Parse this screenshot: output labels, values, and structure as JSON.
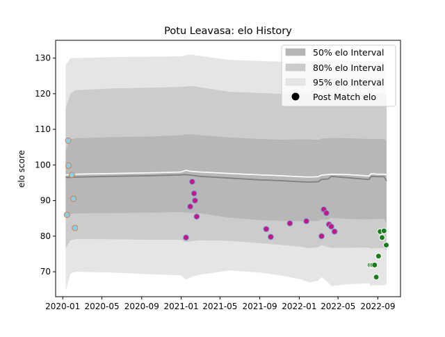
{
  "chart_data": {
    "type": "scatter",
    "title": "Potu Leavasa: elo History",
    "xlabel": "",
    "ylabel": "elo score",
    "xlim": [
      "2019-12-10",
      "2022-11-10"
    ],
    "ylim": [
      63,
      135
    ],
    "x_ticks": [
      "2020-01",
      "2020-05",
      "2020-09",
      "2021-01",
      "2021-05",
      "2021-09",
      "2022-01",
      "2022-05",
      "2022-09"
    ],
    "y_ticks": [
      70,
      80,
      90,
      100,
      110,
      120,
      130
    ],
    "legend": {
      "placement": "top-right",
      "entries": [
        "50% elo Interval",
        "80% elo Interval",
        "95% elo Interval",
        "Post Match elo"
      ]
    },
    "band_dates": [
      "2020-01-10",
      "2020-01-25",
      "2020-02-10",
      "2020-06-01",
      "2020-10-01",
      "2021-01-01",
      "2021-01-15",
      "2021-02-01",
      "2021-03-01",
      "2021-06-01",
      "2021-09-01",
      "2021-11-01",
      "2022-01-01",
      "2022-02-01",
      "2022-03-01",
      "2022-03-10",
      "2022-04-01",
      "2022-04-10",
      "2022-06-01",
      "2022-08-05",
      "2022-08-10",
      "2022-08-20",
      "2022-09-01",
      "2022-09-20",
      "2022-09-28"
    ],
    "series": [
      {
        "name": "95% elo Interval",
        "style": "band",
        "color": "#e5e5e5",
        "upper": [
          128,
          130,
          130,
          130.3,
          130.4,
          130.5,
          130.8,
          131,
          130.6,
          129.5,
          129.2,
          129,
          129.2,
          129.1,
          129.3,
          129.5,
          129.5,
          129.6,
          129.4,
          129,
          129,
          129,
          129,
          129,
          128.5
        ],
        "lower": [
          64.5,
          69.5,
          70,
          69.8,
          69.3,
          69,
          67.8,
          68.5,
          69.2,
          70.4,
          69.8,
          69,
          68,
          67,
          67.5,
          68.5,
          67,
          66,
          66.5,
          66.8,
          66,
          66.2,
          66.2,
          66.2,
          66.5
        ]
      },
      {
        "name": "80% elo Interval",
        "style": "band",
        "color": "#cccccc",
        "upper": [
          116,
          120,
          121,
          121.5,
          121.7,
          121.9,
          122,
          122.2,
          121.8,
          120.5,
          120.2,
          120,
          120,
          120,
          120,
          120.3,
          120.5,
          120.6,
          120.4,
          120.2,
          120.2,
          120.2,
          120.2,
          120.2,
          119
        ]
      },
      {
        "name": "50% elo Interval",
        "style": "band",
        "color": "#b7b7b7",
        "upper": [
          104,
          107.2,
          107.5,
          107.8,
          108,
          108.3,
          108.6,
          108.6,
          108.3,
          107.7,
          107.3,
          107.1,
          107.2,
          107.2,
          107,
          107.4,
          107.5,
          107.6,
          107.5,
          107.3,
          107.3,
          107.3,
          107.3,
          107.3,
          106.8
        ],
        "lower": [
          86,
          86.2,
          86.4,
          86.5,
          86.6,
          86.8,
          86.6,
          86.5,
          86.4,
          85.2,
          84.5,
          84.3,
          84.2,
          84.2,
          84.3,
          84.6,
          84.7,
          85.2,
          84.8,
          84.7,
          84.8,
          84.8,
          84.8,
          84.9,
          83.5
        ]
      },
      {
        "name": "median elo",
        "style": "line",
        "color": "#7f7f7f",
        "values": [
          96.5,
          96.5,
          96.6,
          96.8,
          97,
          97.2,
          97.3,
          97.1,
          96.8,
          96.3,
          95.8,
          95.6,
          95.3,
          95.2,
          95.3,
          95.9,
          96.1,
          96.8,
          96.4,
          95.9,
          96.7,
          96.8,
          96.7,
          96.7,
          95.5
        ]
      },
      {
        "name": "mean elo",
        "style": "line",
        "color": "#ffffff",
        "values": [
          97.2,
          97.3,
          97.4,
          97.6,
          97.8,
          98,
          98.5,
          98.2,
          98,
          97.6,
          97.2,
          97,
          96.7,
          96.6,
          96.7,
          97.1,
          97.3,
          97.4,
          97.3,
          96.9,
          97.5,
          97.5,
          97.4,
          97.4,
          97.3
        ]
      },
      {
        "name": "Post Match elo",
        "style": "points",
        "groups": [
          {
            "fill": "#87ceeb",
            "edge": "#e07a3f",
            "points": [
              [
                "2020-01-18",
                106.8
              ],
              [
                "2020-01-19",
                99.8
              ],
              [
                "2020-01-29",
                97.2
              ],
              [
                "2020-02-03",
                90.5
              ],
              [
                "2020-01-14",
                86
              ],
              [
                "2020-02-08",
                82.3
              ]
            ]
          },
          {
            "fill": "#c71585",
            "edge": "#6fa8dc",
            "points": [
              [
                "2021-02-04",
                95.3
              ],
              [
                "2021-02-10",
                92
              ],
              [
                "2021-02-13",
                90
              ],
              [
                "2021-01-29",
                88.3
              ],
              [
                "2021-02-18",
                85.5
              ],
              [
                "2021-01-16",
                79.6
              ],
              [
                "2021-09-21",
                82
              ],
              [
                "2021-10-05",
                79.8
              ],
              [
                "2021-12-03",
                83.6
              ],
              [
                "2022-01-23",
                84.2
              ],
              [
                "2022-03-18",
                87.5
              ],
              [
                "2022-03-26",
                86.5
              ],
              [
                "2022-04-03",
                83.3
              ],
              [
                "2022-04-10",
                82.7
              ],
              [
                "2022-03-11",
                80
              ],
              [
                "2022-04-20",
                81.3
              ]
            ]
          },
          {
            "fill": "#1b7a1b",
            "edge": "#ffffff",
            "points": [
              [
                "2022-08-08",
                71.9
              ],
              [
                "2022-08-13",
                71.9
              ],
              [
                "2022-08-17",
                71.9
              ],
              [
                "2022-08-22",
                71.9
              ],
              [
                "2022-08-27",
                68.5
              ],
              [
                "2022-09-03",
                74.4
              ],
              [
                "2022-09-08",
                81.3
              ],
              [
                "2022-09-14",
                79.6
              ],
              [
                "2022-09-20",
                81.5
              ],
              [
                "2022-09-27",
                77.5
              ]
            ]
          }
        ]
      }
    ]
  }
}
